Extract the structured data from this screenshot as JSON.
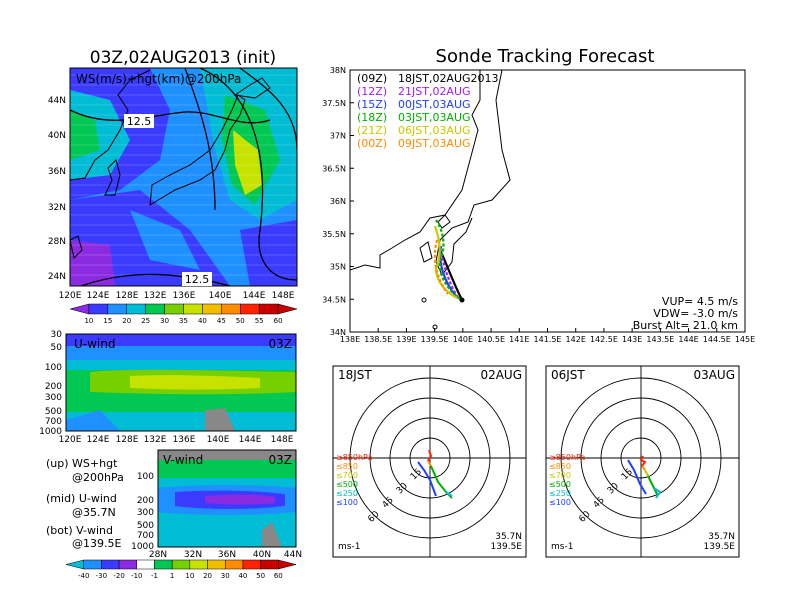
{
  "left_title": "03Z,02AUG2013 (init)",
  "right_title": "Sonde Tracking Forecast",
  "ws_map": {
    "label": "WS(m/s)+hgt(km)@200hPa",
    "contour_labels": [
      "12.5",
      "12.5"
    ],
    "lat_ticks": [
      "44N",
      "40N",
      "36N",
      "32N",
      "28N",
      "24N"
    ],
    "lon_ticks": [
      "120E",
      "124E",
      "128E",
      "132E",
      "136E",
      "140E",
      "144E",
      "148E"
    ],
    "colorbar_ticks": [
      "10",
      "15",
      "20",
      "25",
      "30",
      "35",
      "40",
      "45",
      "50",
      "55",
      "60"
    ],
    "colors": [
      "#8a2be2",
      "#3b3bff",
      "#1e90ff",
      "#00bcd4",
      "#00c853",
      "#76d000",
      "#c8e200",
      "#f0c000",
      "#ff8c00",
      "#ff2200",
      "#c80000"
    ]
  },
  "u_panel": {
    "label": "U-wind",
    "time": "03Z",
    "p_ticks": [
      "30",
      "50",
      "100",
      "200",
      "300",
      "500",
      "700",
      "1000"
    ],
    "lon_ticks": [
      "120E",
      "124E",
      "128E",
      "132E",
      "136E",
      "140E",
      "144E",
      "148E"
    ]
  },
  "v_panel": {
    "label": "V-wind",
    "time": "03Z",
    "p_ticks": [
      "100",
      "200",
      "300",
      "500",
      "700",
      "1000"
    ],
    "lat_ticks": [
      "28N",
      "32N",
      "36N",
      "40N",
      "44N"
    ]
  },
  "legend_text": [
    {
      "a": "(up) WS+hgt",
      "b": "@200hPa"
    },
    {
      "a": "(mid) U-wind",
      "b": "@35.7N"
    },
    {
      "a": "(bot) V-wind",
      "b": "@139.5E"
    }
  ],
  "bottom_colorbar_ticks": [
    "-40",
    "-30",
    "-20",
    "-10",
    "-1",
    "1",
    "10",
    "20",
    "30",
    "40",
    "50",
    "60"
  ],
  "bottom_colors": [
    "#00bcd4",
    "#1e90ff",
    "#3b3bff",
    "#8a2be2",
    "#ffffff",
    "#00c853",
    "#76d000",
    "#c8e200",
    "#f0c000",
    "#ff8c00",
    "#ff2200",
    "#c80000"
  ],
  "track_map": {
    "lat_ticks": [
      "38N",
      "37.5N",
      "37N",
      "36.5N",
      "36N",
      "35.5N",
      "35N",
      "34.5N",
      "34N"
    ],
    "lon_ticks": [
      "138E",
      "138.5E",
      "139E",
      "139.5E",
      "140E",
      "140.5E",
      "141E",
      "141.5E",
      "142E",
      "142.5E",
      "143E",
      "143.5E",
      "144E",
      "144.5E",
      "145E"
    ],
    "launches": [
      {
        "utc": "(09Z)",
        "local": "18JST,02AUG2013",
        "color": "#000000"
      },
      {
        "utc": "(12Z)",
        "local": "21JST,02AUG",
        "color": "#a020f0"
      },
      {
        "utc": "(15Z)",
        "local": "00JST,03AUG",
        "color": "#1e40ff"
      },
      {
        "utc": "(18Z)",
        "local": "03JST,03AUG",
        "color": "#00b000"
      },
      {
        "utc": "(21Z)",
        "local": "06JST,03AUG",
        "color": "#c8c800"
      },
      {
        "utc": "(00Z)",
        "local": "09JST,03AUG",
        "color": "#ff8c00"
      }
    ],
    "info": [
      "VUP= 4.5 m/s",
      "VDW= -3.0 m/s",
      "Burst Alt= 21.0 km"
    ]
  },
  "hodo_left": {
    "left": "18JST",
    "right": "02AUG",
    "unit": "ms-1",
    "lat": "35.7N",
    "lon": "139.5E",
    "ring_labels": [
      "15",
      "30",
      "45",
      "60"
    ],
    "plevels": [
      "≥850hPa",
      "≤850",
      "≤700",
      "≤500",
      "≤250",
      "≤100"
    ],
    "plevel_colors": [
      "#ff2200",
      "#ff8c00",
      "#c8c800",
      "#00b000",
      "#00bcd4",
      "#1e40ff"
    ]
  },
  "hodo_right": {
    "left": "06JST",
    "right": "03AUG",
    "unit": "ms-1",
    "lat": "35.7N",
    "lon": "139.5E",
    "ring_labels": [
      "15",
      "30",
      "45",
      "60"
    ],
    "plevels": [
      "≥850hPa",
      "≤850",
      "≤700",
      "≤500",
      "≤250",
      "≤100"
    ],
    "plevel_colors": [
      "#ff2200",
      "#ff8c00",
      "#c8c800",
      "#00b000",
      "#00bcd4",
      "#1e40ff"
    ]
  }
}
